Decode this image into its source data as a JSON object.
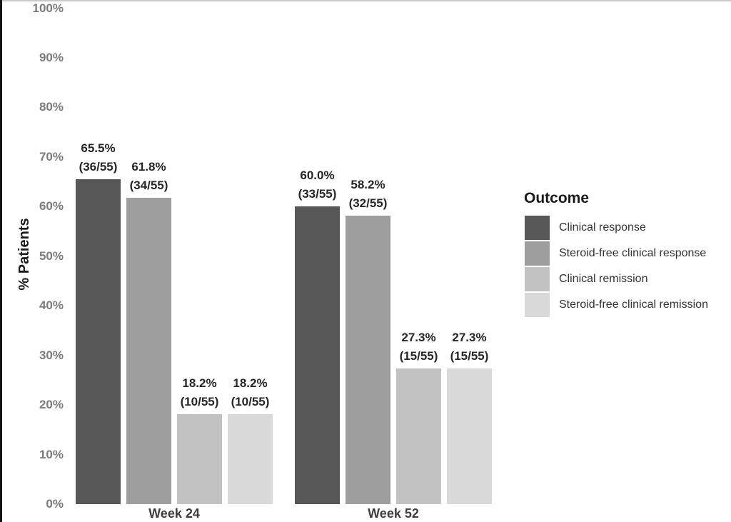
{
  "chart_data": {
    "type": "bar",
    "title": "",
    "xlabel": "",
    "ylabel": "% Patients",
    "ylim": [
      0,
      100
    ],
    "grid": false,
    "ytick_labels": [
      "0%",
      "10%",
      "20%",
      "30%",
      "40%",
      "50%",
      "60%",
      "70%",
      "80%",
      "90%",
      "100%"
    ],
    "categories": [
      "Week 24",
      "Week 52"
    ],
    "legend": {
      "title": "Outcome",
      "position": "right"
    },
    "series": [
      {
        "name": "Clinical response",
        "color": "#575757",
        "values": [
          65.5,
          60.0
        ],
        "bar_labels": [
          [
            "65.5%",
            "(36/55)"
          ],
          [
            "60.0%",
            "(33/55)"
          ]
        ]
      },
      {
        "name": "Steroid-free clinical response",
        "color": "#9e9e9e",
        "values": [
          61.8,
          58.2
        ],
        "bar_labels": [
          [
            "61.8%",
            "(34/55)"
          ],
          [
            "58.2%",
            "(32/55)"
          ]
        ]
      },
      {
        "name": "Clinical remission",
        "color": "#c2c2c2",
        "values": [
          18.2,
          27.3
        ],
        "bar_labels": [
          [
            "18.2%",
            "(10/55)"
          ],
          [
            "27.3%",
            "(15/55)"
          ]
        ]
      },
      {
        "name": "Steroid-free clinical remission",
        "color": "#d9d9d9",
        "values": [
          18.2,
          27.3
        ],
        "bar_labels": [
          [
            "18.2%",
            "(10/55)"
          ],
          [
            "27.3%",
            "(15/55)"
          ]
        ]
      }
    ]
  }
}
